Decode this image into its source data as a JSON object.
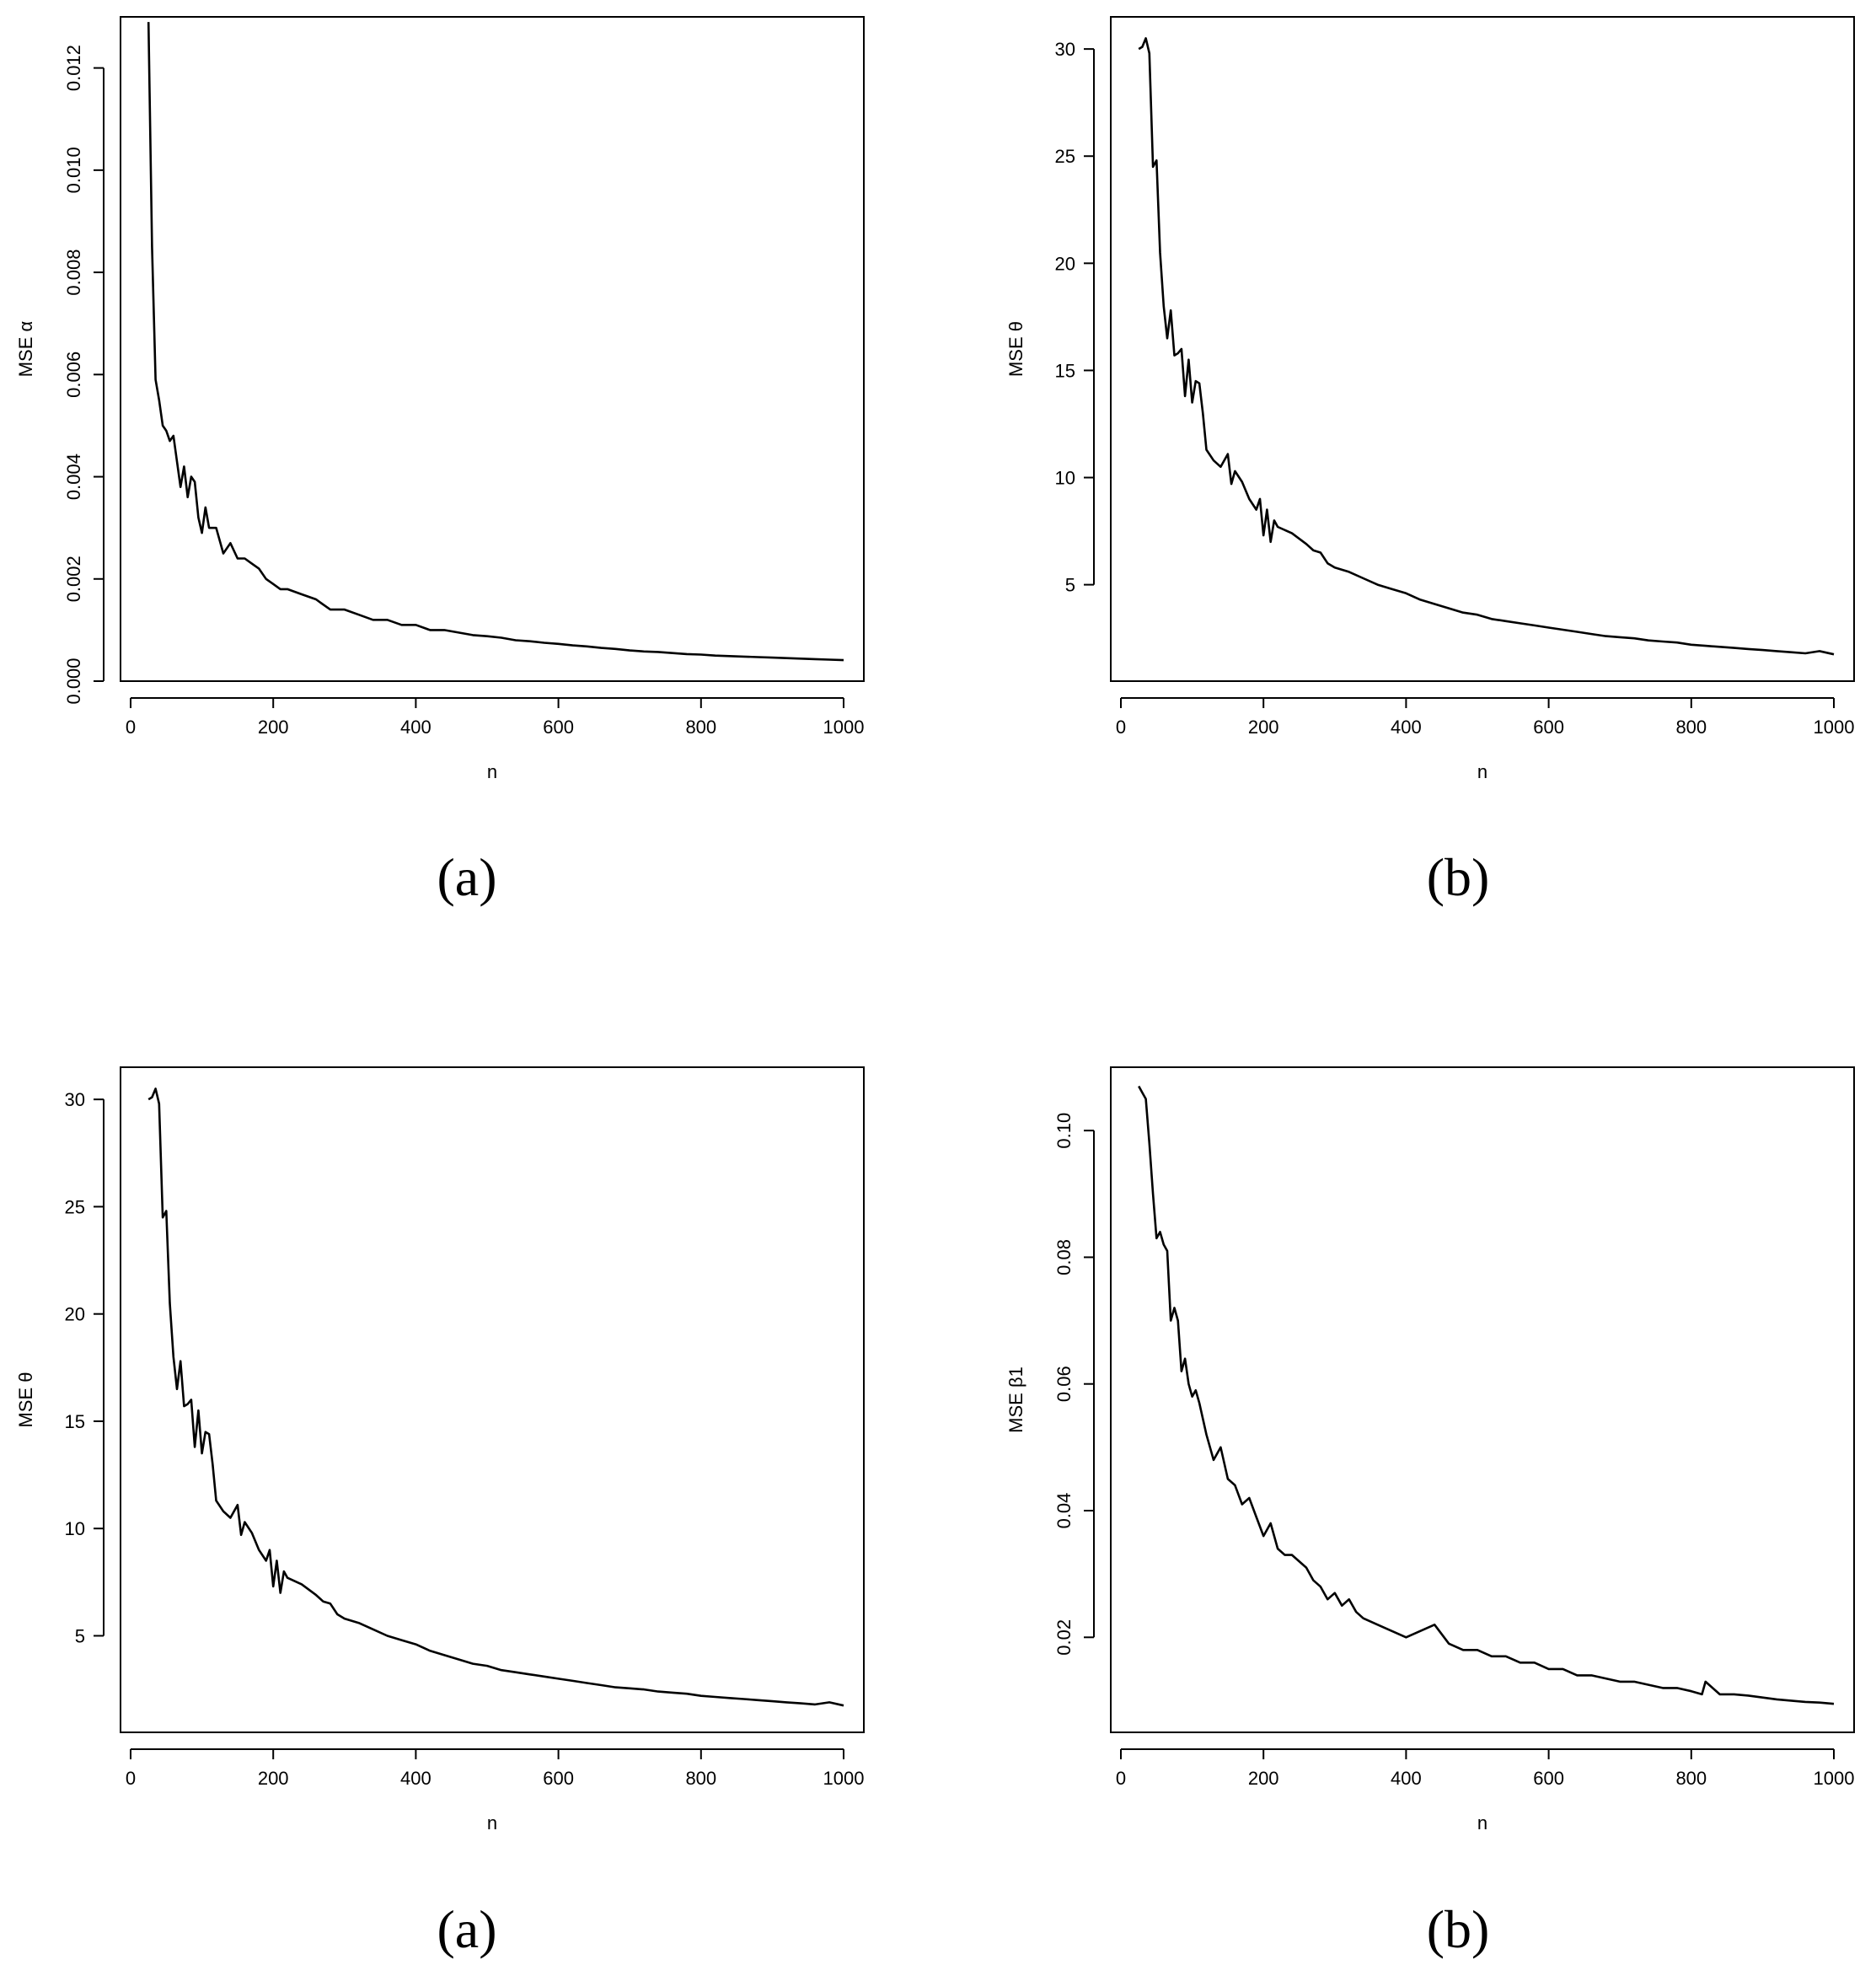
{
  "chart_data": [
    {
      "type": "line",
      "panel": "top-left",
      "caption": "(a)",
      "xlabel": "n",
      "ylabel": "MSE α",
      "xlim": [
        0,
        1000
      ],
      "ylim": [
        0,
        0.013
      ],
      "x_ticks": [
        0,
        200,
        400,
        600,
        800,
        1000
      ],
      "y_ticks": [
        0.0,
        0.002,
        0.004,
        0.006,
        0.008,
        0.01,
        0.012
      ],
      "y_tick_labels": [
        "0.000",
        "0.002",
        "0.004",
        "0.006",
        "0.008",
        "0.010",
        "0.012"
      ],
      "y_tick_rotated": true,
      "series": [
        {
          "x": [
            25,
            30,
            35,
            40,
            45,
            50,
            55,
            60,
            65,
            70,
            75,
            80,
            85,
            90,
            95,
            100,
            105,
            110,
            120,
            130,
            140,
            150,
            160,
            170,
            180,
            190,
            200,
            210,
            220,
            240,
            260,
            270,
            280,
            300,
            320,
            340,
            360,
            380,
            400,
            420,
            440,
            460,
            480,
            500,
            520,
            540,
            560,
            580,
            600,
            620,
            640,
            660,
            680,
            700,
            720,
            740,
            760,
            780,
            800,
            820,
            840,
            860,
            880,
            900,
            920,
            940,
            960,
            980,
            1000
          ],
          "values": [
            0.0129,
            0.0085,
            0.0059,
            0.0055,
            0.005,
            0.0049,
            0.0047,
            0.0048,
            0.0043,
            0.0038,
            0.0042,
            0.0036,
            0.004,
            0.0039,
            0.0032,
            0.0029,
            0.0034,
            0.003,
            0.003,
            0.0025,
            0.0027,
            0.0024,
            0.0024,
            0.0023,
            0.0022,
            0.002,
            0.0019,
            0.0018,
            0.0018,
            0.0017,
            0.0016,
            0.0015,
            0.0014,
            0.0014,
            0.0013,
            0.0012,
            0.0012,
            0.0011,
            0.0011,
            0.001,
            0.001,
            0.00095,
            0.0009,
            0.00088,
            0.00085,
            0.0008,
            0.00078,
            0.00075,
            0.00073,
            0.0007,
            0.00068,
            0.00065,
            0.00063,
            0.0006,
            0.00058,
            0.00057,
            0.00055,
            0.00053,
            0.00052,
            0.0005,
            0.00049,
            0.00048,
            0.00047,
            0.00046,
            0.00045,
            0.00044,
            0.00043,
            0.00042,
            0.00041
          ]
        }
      ]
    },
    {
      "type": "line",
      "panel": "top-right",
      "caption": "(b)",
      "xlabel": "n",
      "ylabel": "MSE θ",
      "xlim": [
        0,
        1000
      ],
      "ylim": [
        0.5,
        31.5
      ],
      "x_ticks": [
        0,
        200,
        400,
        600,
        800,
        1000
      ],
      "y_ticks": [
        5,
        10,
        15,
        20,
        25,
        30
      ],
      "y_tick_labels": [
        "5",
        "10",
        "15",
        "20",
        "25",
        "30"
      ],
      "y_tick_rotated": false,
      "series": [
        {
          "x": [
            25,
            30,
            35,
            40,
            45,
            50,
            55,
            60,
            65,
            70,
            75,
            80,
            85,
            90,
            95,
            100,
            105,
            110,
            115,
            120,
            130,
            140,
            150,
            155,
            160,
            170,
            180,
            190,
            195,
            200,
            205,
            210,
            215,
            220,
            240,
            260,
            270,
            280,
            290,
            300,
            320,
            340,
            360,
            380,
            400,
            420,
            440,
            460,
            480,
            500,
            520,
            540,
            560,
            580,
            600,
            620,
            640,
            660,
            680,
            700,
            720,
            740,
            760,
            780,
            800,
            820,
            840,
            860,
            880,
            900,
            920,
            940,
            960,
            980,
            1000
          ],
          "values": [
            30.0,
            30.1,
            30.5,
            29.8,
            24.5,
            24.8,
            20.5,
            18.0,
            16.5,
            17.8,
            15.7,
            15.8,
            16.0,
            13.8,
            15.5,
            13.5,
            14.5,
            14.4,
            13.0,
            11.3,
            10.8,
            10.5,
            11.1,
            9.7,
            10.3,
            9.8,
            9.0,
            8.5,
            9.0,
            7.3,
            8.5,
            7.0,
            8.0,
            7.7,
            7.4,
            6.9,
            6.6,
            6.5,
            6.0,
            5.8,
            5.6,
            5.3,
            5.0,
            4.8,
            4.6,
            4.3,
            4.1,
            3.9,
            3.7,
            3.6,
            3.4,
            3.3,
            3.2,
            3.1,
            3.0,
            2.9,
            2.8,
            2.7,
            2.6,
            2.55,
            2.5,
            2.4,
            2.35,
            2.3,
            2.2,
            2.15,
            2.1,
            2.05,
            2.0,
            1.95,
            1.9,
            1.85,
            1.8,
            1.9,
            1.75
          ]
        }
      ]
    },
    {
      "type": "line",
      "panel": "bottom-left",
      "caption": "(a)",
      "xlabel": "n",
      "ylabel": "MSE θ",
      "xlim": [
        0,
        1000
      ],
      "ylim": [
        0.5,
        31.5
      ],
      "x_ticks": [
        0,
        200,
        400,
        600,
        800,
        1000
      ],
      "y_ticks": [
        5,
        10,
        15,
        20,
        25,
        30
      ],
      "y_tick_labels": [
        "5",
        "10",
        "15",
        "20",
        "25",
        "30"
      ],
      "y_tick_rotated": false,
      "series": [
        {
          "x": [
            25,
            30,
            35,
            40,
            45,
            50,
            55,
            60,
            65,
            70,
            75,
            80,
            85,
            90,
            95,
            100,
            105,
            110,
            115,
            120,
            130,
            140,
            150,
            155,
            160,
            170,
            180,
            190,
            195,
            200,
            205,
            210,
            215,
            220,
            240,
            260,
            270,
            280,
            290,
            300,
            320,
            340,
            360,
            380,
            400,
            420,
            440,
            460,
            480,
            500,
            520,
            540,
            560,
            580,
            600,
            620,
            640,
            660,
            680,
            700,
            720,
            740,
            760,
            780,
            800,
            820,
            840,
            860,
            880,
            900,
            920,
            940,
            960,
            980,
            1000
          ],
          "values": [
            30.0,
            30.1,
            30.5,
            29.8,
            24.5,
            24.8,
            20.5,
            18.0,
            16.5,
            17.8,
            15.7,
            15.8,
            16.0,
            13.8,
            15.5,
            13.5,
            14.5,
            14.4,
            13.0,
            11.3,
            10.8,
            10.5,
            11.1,
            9.7,
            10.3,
            9.8,
            9.0,
            8.5,
            9.0,
            7.3,
            8.5,
            7.0,
            8.0,
            7.7,
            7.4,
            6.9,
            6.6,
            6.5,
            6.0,
            5.8,
            5.6,
            5.3,
            5.0,
            4.8,
            4.6,
            4.3,
            4.1,
            3.9,
            3.7,
            3.6,
            3.4,
            3.3,
            3.2,
            3.1,
            3.0,
            2.9,
            2.8,
            2.7,
            2.6,
            2.55,
            2.5,
            2.4,
            2.35,
            2.3,
            2.2,
            2.15,
            2.1,
            2.05,
            2.0,
            1.95,
            1.9,
            1.85,
            1.8,
            1.9,
            1.75
          ]
        }
      ]
    },
    {
      "type": "line",
      "panel": "bottom-right",
      "caption": "(b)",
      "xlabel": "n",
      "ylabel": "MSE β1",
      "xlim": [
        0,
        1000
      ],
      "ylim": [
        0.005,
        0.11
      ],
      "x_ticks": [
        0,
        200,
        400,
        600,
        800,
        1000
      ],
      "y_ticks": [
        0.02,
        0.04,
        0.06,
        0.08,
        0.1
      ],
      "y_tick_labels": [
        "0.02",
        "0.04",
        "0.06",
        "0.08",
        "0.10"
      ],
      "y_tick_rotated": true,
      "series": [
        {
          "x": [
            25,
            30,
            35,
            40,
            45,
            50,
            55,
            60,
            65,
            70,
            75,
            80,
            85,
            90,
            95,
            100,
            105,
            110,
            120,
            130,
            140,
            150,
            160,
            170,
            180,
            190,
            200,
            210,
            220,
            230,
            240,
            250,
            260,
            270,
            280,
            290,
            300,
            310,
            320,
            330,
            340,
            360,
            380,
            400,
            420,
            440,
            460,
            480,
            500,
            520,
            540,
            560,
            580,
            600,
            620,
            640,
            660,
            680,
            700,
            720,
            740,
            760,
            780,
            800,
            815,
            820,
            840,
            860,
            880,
            900,
            920,
            940,
            960,
            980,
            1000
          ],
          "values": [
            0.107,
            0.106,
            0.105,
            0.098,
            0.09,
            0.083,
            0.084,
            0.082,
            0.081,
            0.07,
            0.072,
            0.07,
            0.062,
            0.064,
            0.06,
            0.058,
            0.059,
            0.057,
            0.052,
            0.048,
            0.05,
            0.045,
            0.044,
            0.041,
            0.042,
            0.039,
            0.036,
            0.038,
            0.034,
            0.033,
            0.033,
            0.032,
            0.031,
            0.029,
            0.028,
            0.026,
            0.027,
            0.025,
            0.026,
            0.024,
            0.023,
            0.022,
            0.021,
            0.02,
            0.021,
            0.022,
            0.019,
            0.018,
            0.018,
            0.017,
            0.017,
            0.016,
            0.016,
            0.015,
            0.015,
            0.014,
            0.014,
            0.0135,
            0.013,
            0.013,
            0.0125,
            0.012,
            0.012,
            0.0115,
            0.011,
            0.013,
            0.011,
            0.011,
            0.0108,
            0.0105,
            0.0102,
            0.01,
            0.0098,
            0.0097,
            0.0095
          ]
        }
      ]
    }
  ]
}
